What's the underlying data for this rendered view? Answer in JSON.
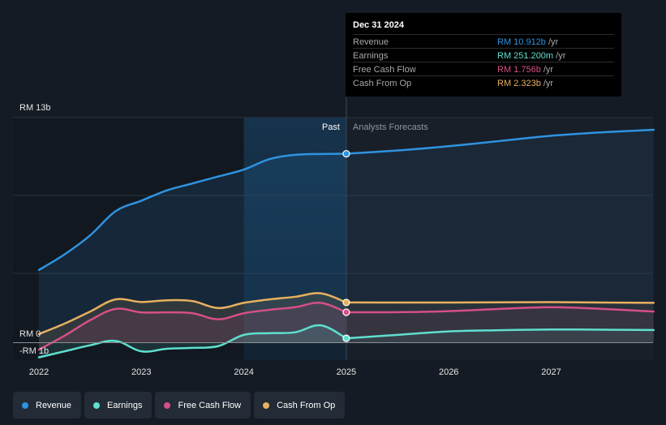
{
  "chart_data": {
    "type": "line",
    "y_unit": "RM billions",
    "ylim": [
      -1,
      13
    ],
    "y_axis_labels": {
      "top": "RM 13b",
      "zero": "RM 0",
      "bottom": "-RM 1b"
    },
    "x_ticks": [
      "2022",
      "2023",
      "2024",
      "2025",
      "2026",
      "2027"
    ],
    "x_tick_values": [
      2022.0,
      2023.0,
      2024.0,
      2025.0,
      2026.0,
      2027.0
    ],
    "divider_x": 2025.0,
    "past_region_start": 2024.0,
    "region_labels": {
      "past": "Past",
      "forecast": "Analysts Forecasts"
    },
    "series": [
      {
        "key": "revenue",
        "name": "Revenue",
        "color": "#2f93e0",
        "area": true,
        "points": [
          [
            2022.0,
            4.2
          ],
          [
            2022.25,
            5.1
          ],
          [
            2022.5,
            6.2
          ],
          [
            2022.75,
            7.6
          ],
          [
            2023.0,
            8.2
          ],
          [
            2023.25,
            8.8
          ],
          [
            2023.5,
            9.2
          ],
          [
            2023.75,
            9.6
          ],
          [
            2024.0,
            10.0
          ],
          [
            2024.25,
            10.6
          ],
          [
            2024.5,
            10.85
          ],
          [
            2024.75,
            10.9
          ],
          [
            2025.0,
            10.912
          ],
          [
            2025.5,
            11.1
          ],
          [
            2026.0,
            11.35
          ],
          [
            2026.5,
            11.65
          ],
          [
            2027.0,
            11.95
          ],
          [
            2027.5,
            12.15
          ],
          [
            2028.0,
            12.3
          ]
        ]
      },
      {
        "key": "cfo",
        "name": "Cash From Op",
        "color": "#e8b05f",
        "area": true,
        "points": [
          [
            2022.0,
            0.5
          ],
          [
            2022.25,
            1.1
          ],
          [
            2022.5,
            1.8
          ],
          [
            2022.75,
            2.5
          ],
          [
            2023.0,
            2.35
          ],
          [
            2023.25,
            2.45
          ],
          [
            2023.5,
            2.4
          ],
          [
            2023.75,
            2.0
          ],
          [
            2024.0,
            2.3
          ],
          [
            2024.25,
            2.5
          ],
          [
            2024.5,
            2.65
          ],
          [
            2024.75,
            2.85
          ],
          [
            2025.0,
            2.323
          ],
          [
            2025.5,
            2.32
          ],
          [
            2026.0,
            2.32
          ],
          [
            2026.5,
            2.33
          ],
          [
            2027.0,
            2.34
          ],
          [
            2027.5,
            2.32
          ],
          [
            2028.0,
            2.3
          ]
        ]
      },
      {
        "key": "fcf",
        "name": "Free Cash Flow",
        "color": "#d64f86",
        "area": true,
        "points": [
          [
            2022.0,
            -0.4
          ],
          [
            2022.25,
            0.4
          ],
          [
            2022.5,
            1.3
          ],
          [
            2022.75,
            1.95
          ],
          [
            2023.0,
            1.75
          ],
          [
            2023.25,
            1.75
          ],
          [
            2023.5,
            1.7
          ],
          [
            2023.75,
            1.35
          ],
          [
            2024.0,
            1.7
          ],
          [
            2024.25,
            1.9
          ],
          [
            2024.5,
            2.05
          ],
          [
            2024.75,
            2.3
          ],
          [
            2025.0,
            1.756
          ],
          [
            2025.5,
            1.76
          ],
          [
            2026.0,
            1.82
          ],
          [
            2026.5,
            1.95
          ],
          [
            2027.0,
            2.05
          ],
          [
            2027.5,
            1.95
          ],
          [
            2028.0,
            1.8
          ]
        ]
      },
      {
        "key": "earnings",
        "name": "Earnings",
        "color": "#5fdfcf",
        "area": true,
        "points": [
          [
            2022.0,
            -0.85
          ],
          [
            2022.25,
            -0.5
          ],
          [
            2022.5,
            -0.15
          ],
          [
            2022.75,
            0.1
          ],
          [
            2023.0,
            -0.5
          ],
          [
            2023.25,
            -0.35
          ],
          [
            2023.5,
            -0.3
          ],
          [
            2023.75,
            -0.2
          ],
          [
            2024.0,
            0.45
          ],
          [
            2024.25,
            0.55
          ],
          [
            2024.5,
            0.6
          ],
          [
            2024.75,
            1.0
          ],
          [
            2025.0,
            0.251
          ],
          [
            2025.5,
            0.45
          ],
          [
            2026.0,
            0.65
          ],
          [
            2026.5,
            0.72
          ],
          [
            2027.0,
            0.76
          ],
          [
            2027.5,
            0.75
          ],
          [
            2028.0,
            0.73
          ]
        ]
      }
    ]
  },
  "tooltip": {
    "date": "Dec 31 2024",
    "rows": [
      {
        "label": "Revenue",
        "value": "RM 10.912b",
        "unit": " /yr",
        "color": "#2f93e0"
      },
      {
        "label": "Earnings",
        "value": "RM 251.200m",
        "unit": " /yr",
        "color": "#5fdfcf"
      },
      {
        "label": "Free Cash Flow",
        "value": "RM 1.756b",
        "unit": " /yr",
        "color": "#d64f86"
      },
      {
        "label": "Cash From Op",
        "value": "RM 2.323b",
        "unit": " /yr",
        "color": "#e8b05f"
      }
    ]
  },
  "legend": [
    {
      "label": "Revenue",
      "color": "#2f93e0"
    },
    {
      "label": "Earnings",
      "color": "#5fdfcf"
    },
    {
      "label": "Free Cash Flow",
      "color": "#d64f86"
    },
    {
      "label": "Cash From Op",
      "color": "#e8b05f"
    }
  ]
}
